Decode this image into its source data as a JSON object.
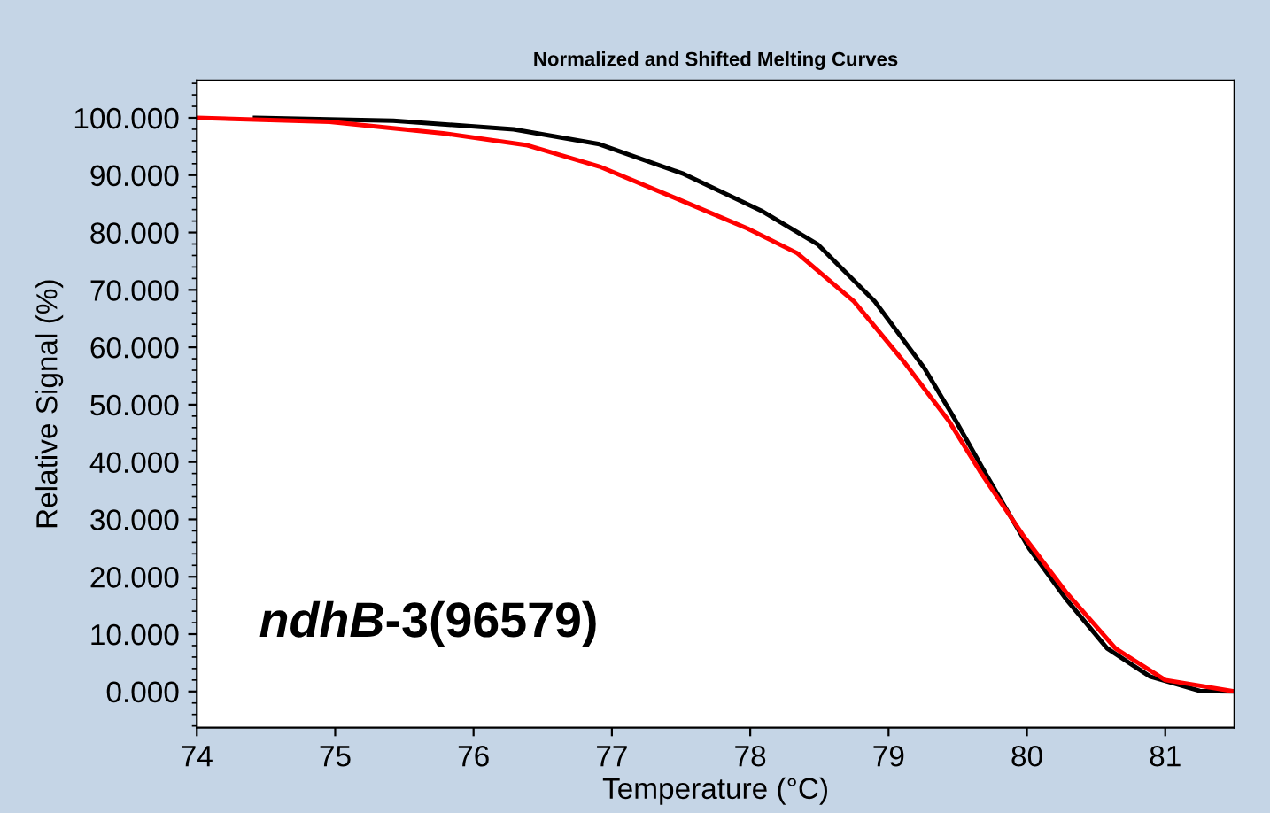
{
  "chart_data": {
    "type": "line",
    "title": "Normalized and Shifted Melting Curves",
    "xlabel": "Temperature (°C)",
    "ylabel": "Relative Signal (%)",
    "annotations": [
      "ndhB-3(96579)"
    ],
    "xlim": [
      74,
      81.5
    ],
    "xticks": [
      74,
      75,
      76,
      77,
      78,
      79,
      80,
      81
    ],
    "ylim": [
      -6.3,
      106.5
    ],
    "yticks": [
      {
        "value": 0,
        "label": "0.000"
      },
      {
        "value": 10,
        "label": "10.000"
      },
      {
        "value": 20,
        "label": "20.000"
      },
      {
        "value": 30,
        "label": "30.000"
      },
      {
        "value": 40,
        "label": "40.000"
      },
      {
        "value": 50,
        "label": "50.000"
      },
      {
        "value": 60,
        "label": "60.000"
      },
      {
        "value": 70,
        "label": "70.000"
      },
      {
        "value": 80,
        "label": "80.000"
      },
      {
        "value": 90,
        "label": "90.000"
      },
      {
        "value": 100,
        "label": "100.000"
      }
    ],
    "grid": false,
    "legend": false,
    "marker": "none",
    "line_style": "solid",
    "series": [
      {
        "color": "#000000",
        "x": [
          74.42,
          75.42,
          76.29,
          76.91,
          77.52,
          78.08,
          78.49,
          78.9,
          79.26,
          79.49,
          79.72,
          80.02,
          80.28,
          80.58,
          80.89,
          81.25,
          81.5
        ],
        "values": [
          100,
          99.5,
          98.0,
          95.4,
          90.2,
          83.8,
          77.9,
          68.0,
          56.3,
          47.0,
          37.2,
          24.8,
          16.2,
          7.5,
          2.6,
          0.1,
          0
        ]
      },
      {
        "color": "#ff0000",
        "x": [
          74.0,
          74.96,
          75.78,
          76.39,
          76.91,
          77.47,
          77.98,
          78.34,
          78.75,
          79.11,
          79.44,
          79.66,
          79.97,
          80.28,
          80.64,
          81.0,
          81.5
        ],
        "values": [
          100,
          99.3,
          97.3,
          95.2,
          91.5,
          85.9,
          80.7,
          76.4,
          68.0,
          57.5,
          47.0,
          38.4,
          27.3,
          17.4,
          7.5,
          2.0,
          0
        ]
      }
    ]
  }
}
